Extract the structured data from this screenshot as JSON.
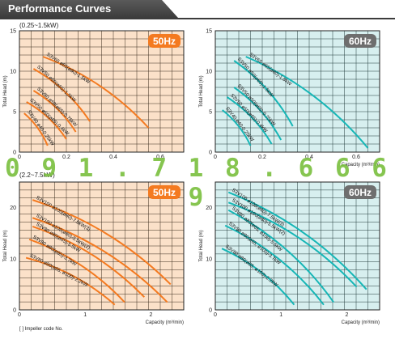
{
  "header": {
    "title": "Performance Curves"
  },
  "ranges": {
    "top": "(0.25~1.5kW)",
    "bottom": "(2.2~7.5kW)"
  },
  "watermark": {
    "text": "0 9 1 . 7 1 8 . 6 6 6 9"
  },
  "footnote": "[  ] Impeller code No.",
  "colors": {
    "orange_bg": "#fbe1c9",
    "orange_grid": "#3a2a1c",
    "orange_curve": "#f47a20",
    "cyan_bg": "#d7efef",
    "cyan_grid": "#203a3a",
    "cyan_curve": "#16b6b6",
    "badge_orange": "#f47a20",
    "badge_gray": "#6e6e6e"
  },
  "chart_data": [
    {
      "type": "line",
      "id": "tl",
      "badge": "50Hz",
      "theme": "orange",
      "ylabel": "Total Head (m)",
      "xlabel": "",
      "xlim": [
        0,
        0.7
      ],
      "ylim": [
        0,
        15
      ],
      "xticks": [
        "0",
        "0.2",
        "0.4",
        "0.6"
      ],
      "xtick_values": [
        0,
        0.2,
        0.4,
        0.6
      ],
      "yticks": [
        "0",
        "5",
        "10",
        "15"
      ],
      "ytick_values": [
        0,
        5,
        10,
        15
      ],
      "series": [
        {
          "name": "S3V65 ø65(ø80)-1.5kW",
          "x": [
            0.1,
            0.55
          ],
          "y": [
            11.8,
            3.0
          ]
        },
        {
          "name": "S3V50 ø50(ø65)-1.5kW",
          "x": [
            0.06,
            0.3
          ],
          "y": [
            10.3,
            3.8
          ]
        },
        {
          "name": "S3V50 ø50(ø65)-0.75kW",
          "x": [
            0.06,
            0.24
          ],
          "y": [
            7.6,
            2.5
          ]
        },
        {
          "name": "S3V50 ø50(ø65)-0.4kW",
          "x": [
            0.03,
            0.2
          ],
          "y": [
            6.2,
            1.6
          ]
        },
        {
          "name": "S3V40 ø40-0.25kW",
          "x": [
            0.02,
            0.12
          ],
          "y": [
            4.8,
            0.8
          ]
        }
      ]
    },
    {
      "type": "line",
      "id": "tr",
      "badge": "60Hz",
      "theme": "cyan",
      "ylabel": "Total Head (m)",
      "xlabel": "Capacity (m³/min)",
      "xlim": [
        0,
        0.7
      ],
      "ylim": [
        0,
        15
      ],
      "xticks": [
        "0",
        "0.2",
        "0.4",
        "0.6"
      ],
      "xtick_values": [
        0,
        0.2,
        0.4,
        0.6
      ],
      "yticks": [
        "0",
        "5",
        "10",
        "15"
      ],
      "ytick_values": [
        0,
        5,
        10,
        15
      ],
      "series": [
        {
          "name": "S3V65 ø65(ø80)-1.5kW",
          "x": [
            0.13,
            0.65
          ],
          "y": [
            11.8,
            0.5
          ]
        },
        {
          "name": "S3V50 ø50(ø65)-1.5kW",
          "x": [
            0.08,
            0.33
          ],
          "y": [
            11.3,
            3.2
          ]
        },
        {
          "name": "S3V50 ø50(ø65)-0.75kW",
          "x": [
            0.08,
            0.28
          ],
          "y": [
            8.0,
            1.5
          ]
        },
        {
          "name": "S3V50 ø50(ø65)-0.4kW",
          "x": [
            0.05,
            0.24
          ],
          "y": [
            6.8,
            1.0
          ]
        },
        {
          "name": "S3V40 ø40-0.25kW",
          "x": [
            0.03,
            0.15
          ],
          "y": [
            5.2,
            0.8
          ]
        }
      ]
    },
    {
      "type": "line",
      "id": "bl",
      "badge": "50Hz",
      "theme": "orange",
      "ylabel": "Total Head (m)",
      "xlabel": "Capacity (m³/min)",
      "xlim": [
        0,
        2.5
      ],
      "ylim": [
        0,
        25
      ],
      "xticks": [
        "0",
        "1",
        "2"
      ],
      "xtick_values": [
        0,
        1,
        2
      ],
      "yticks": [
        "0",
        "10",
        "20"
      ],
      "ytick_values": [
        0,
        10,
        20
      ],
      "series": [
        {
          "name": "S3V100 ø100(ø80)-7.5kW(3)",
          "x": [
            0.2,
            2.3
          ],
          "y": [
            21.5,
            5.0
          ]
        },
        {
          "name": "S3V100 ø100(ø80)-5.5kW(2)",
          "x": [
            0.2,
            2.25
          ],
          "y": [
            18.0,
            1.5
          ]
        },
        {
          "name": "S3V80 ø80(ø65)-5.5kW",
          "x": [
            0.2,
            1.9
          ],
          "y": [
            16.3,
            2.5
          ]
        },
        {
          "name": "S3V80 ø80(ø65)-3.7kW",
          "x": [
            0.15,
            1.6
          ],
          "y": [
            13.8,
            1.5
          ]
        },
        {
          "name": "S3V80 ø80(ø65, ø100)-2.2kW",
          "x": [
            0.1,
            1.45
          ],
          "y": [
            10.2,
            1.0
          ]
        }
      ]
    },
    {
      "type": "line",
      "id": "br",
      "badge": "60Hz",
      "theme": "cyan",
      "ylabel": "Total Head (m)",
      "xlabel": "Capacity (m³/min)",
      "xlim": [
        0,
        2.5
      ],
      "ylim": [
        0,
        25
      ],
      "xticks": [
        "0",
        "1",
        "2"
      ],
      "xtick_values": [
        0,
        1,
        2
      ],
      "yticks": [
        "0",
        "10",
        "20"
      ],
      "ytick_values": [
        0,
        10,
        20
      ],
      "series": [
        {
          "name": "S3V100 ø100(ø80)-7.5kW(3)",
          "x": [
            0.2,
            2.3
          ],
          "y": [
            23.0,
            4.0
          ]
        },
        {
          "name": "S3V100 ø100(ø80)-5.5kW(2)",
          "x": [
            0.2,
            2.15
          ],
          "y": [
            21.0,
            4.5
          ]
        },
        {
          "name": "S3V80 ø80(ø65, ø100)-5.5kW",
          "x": [
            0.2,
            1.8
          ],
          "y": [
            19.5,
            1.5
          ]
        },
        {
          "name": "S3V80 ø80(ø65, ø100)-3.7kW",
          "x": [
            0.15,
            1.65
          ],
          "y": [
            16.5,
            1.0
          ]
        },
        {
          "name": "S3V80 ø80(ø65, ø100)-2.2kW",
          "x": [
            0.1,
            1.2
          ],
          "y": [
            12.0,
            1.0
          ]
        }
      ]
    }
  ]
}
